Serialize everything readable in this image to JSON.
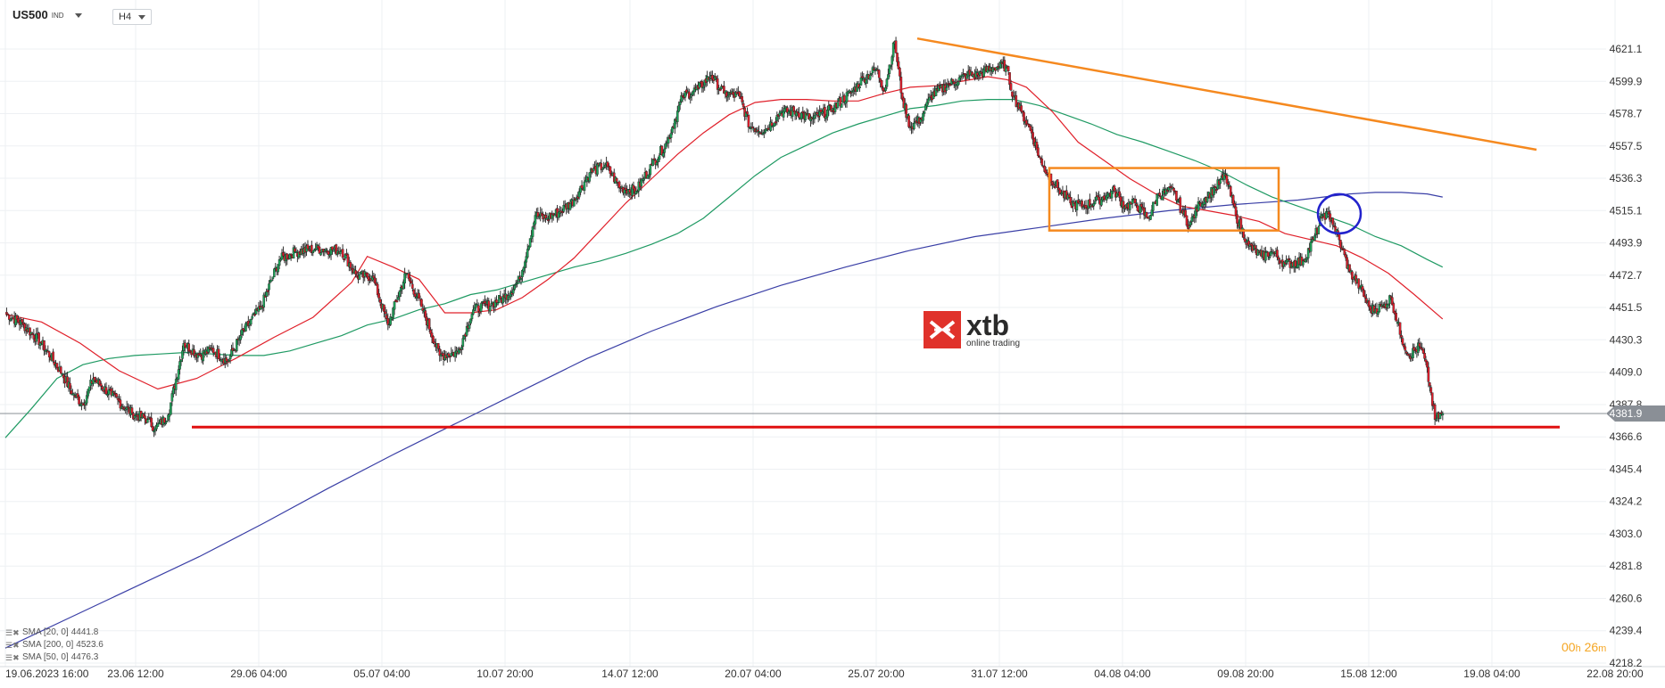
{
  "header": {
    "symbol": "US500",
    "symbol_type": "IND",
    "timeframe": "H4"
  },
  "price_axis": {
    "labels": [
      "4621.1",
      "4599.9",
      "4578.7",
      "4557.5",
      "4536.3",
      "4515.1",
      "4493.9",
      "4472.7",
      "4451.5",
      "4430.3",
      "4409.0",
      "4387.8",
      "4366.6",
      "4345.4",
      "4324.2",
      "4303.0",
      "4281.8",
      "4260.6",
      "4239.4",
      "4218.2"
    ],
    "current_price": "4381.9"
  },
  "time_axis": {
    "labels": [
      "19.06.2023  16:00",
      "23.06  12:00",
      "29.06  04:00",
      "05.07  04:00",
      "10.07  20:00",
      "14.07  12:00",
      "20.07  04:00",
      "25.07  20:00",
      "31.07  12:00",
      "04.08  04:00",
      "09.08  20:00",
      "15.08  12:00",
      "19.08  04:00",
      "22.08  20:00"
    ]
  },
  "indicators": [
    {
      "label": "SMA [20, 0]",
      "value": "4441.8",
      "color": "#e0202a"
    },
    {
      "label": "SMA [200, 0]",
      "value": "4523.6",
      "color": "#3a3fa6"
    },
    {
      "label": "SMA [50, 0]",
      "value": "4476.3",
      "color": "#1f9a63"
    }
  ],
  "logo": {
    "word": "xtb",
    "subtitle": "online trading"
  },
  "countdown": {
    "hours": "00",
    "hours_unit": "h",
    "minutes": "26",
    "minutes_unit": "m"
  },
  "colors": {
    "up": "#1fa55b",
    "down": "#e01e2c",
    "sma20": "#e0202a",
    "sma50": "#1f9a63",
    "sma200": "#3a3fa6",
    "trendline": "#f5891f",
    "box": "#f5891f",
    "support": "#e01010",
    "circle": "#2222cc",
    "price_line": "#8a8f96"
  },
  "chart_data": {
    "type": "candlestick",
    "symbol": "US500",
    "timeframe": "H4",
    "ylim": [
      4218.2,
      4631
    ],
    "x_range": [
      "19.06.2023 16:00",
      "22.08 20:00"
    ],
    "current_price": 4381.9,
    "support_level": 4373,
    "trendline": {
      "start": {
        "time": "27.07",
        "price": 4636
      },
      "end": {
        "time": "19.08",
        "price": 4554
      }
    },
    "consolidation_box": {
      "from": "01.08",
      "to": "10.08",
      "low": 4498,
      "high": 4542
    },
    "highlight_circle": {
      "time": "14.08",
      "price": 4510
    },
    "anchors": [
      [
        0,
        4448
      ],
      [
        14,
        4440
      ],
      [
        28,
        4428
      ],
      [
        44,
        4408
      ],
      [
        52,
        4395
      ],
      [
        60,
        4388
      ],
      [
        68,
        4405
      ],
      [
        82,
        4394
      ],
      [
        98,
        4382
      ],
      [
        110,
        4378
      ],
      [
        116,
        4372
      ],
      [
        126,
        4381
      ],
      [
        138,
        4428
      ],
      [
        150,
        4420
      ],
      [
        160,
        4424
      ],
      [
        172,
        4416
      ],
      [
        182,
        4433
      ],
      [
        198,
        4452
      ],
      [
        212,
        4483
      ],
      [
        224,
        4488
      ],
      [
        240,
        4490
      ],
      [
        260,
        4489
      ],
      [
        272,
        4472
      ],
      [
        284,
        4472
      ],
      [
        296,
        4440
      ],
      [
        310,
        4474
      ],
      [
        322,
        4452
      ],
      [
        336,
        4420
      ],
      [
        350,
        4422
      ],
      [
        362,
        4450
      ],
      [
        376,
        4454
      ],
      [
        386,
        4458
      ],
      [
        398,
        4470
      ],
      [
        410,
        4512
      ],
      [
        418,
        4510
      ],
      [
        428,
        4514
      ],
      [
        440,
        4522
      ],
      [
        452,
        4540
      ],
      [
        464,
        4545
      ],
      [
        476,
        4530
      ],
      [
        488,
        4528
      ],
      [
        500,
        4545
      ],
      [
        512,
        4560
      ],
      [
        524,
        4590
      ],
      [
        536,
        4595
      ],
      [
        546,
        4604
      ],
      [
        556,
        4592
      ],
      [
        568,
        4590
      ],
      [
        576,
        4570
      ],
      [
        588,
        4568
      ],
      [
        600,
        4580
      ],
      [
        612,
        4580
      ],
      [
        624,
        4575
      ],
      [
        640,
        4582
      ],
      [
        656,
        4594
      ],
      [
        664,
        4602
      ],
      [
        674,
        4608
      ],
      [
        680,
        4594
      ],
      [
        688,
        4626
      ],
      [
        694,
        4588
      ],
      [
        700,
        4570
      ],
      [
        708,
        4575
      ],
      [
        716,
        4590
      ],
      [
        730,
        4598
      ],
      [
        744,
        4604
      ],
      [
        752,
        4604
      ],
      [
        764,
        4609
      ],
      [
        774,
        4610
      ],
      [
        780,
        4590
      ],
      [
        786,
        4580
      ],
      [
        794,
        4566
      ],
      [
        802,
        4545
      ],
      [
        814,
        4530
      ],
      [
        824,
        4520
      ],
      [
        834,
        4518
      ],
      [
        846,
        4522
      ],
      [
        858,
        4528
      ],
      [
        866,
        4518
      ],
      [
        874,
        4520
      ],
      [
        884,
        4510
      ],
      [
        892,
        4526
      ],
      [
        904,
        4528
      ],
      [
        910,
        4515
      ],
      [
        916,
        4505
      ],
      [
        924,
        4520
      ],
      [
        936,
        4530
      ],
      [
        944,
        4538
      ],
      [
        952,
        4512
      ],
      [
        962,
        4492
      ],
      [
        972,
        4485
      ],
      [
        980,
        4488
      ],
      [
        990,
        4480
      ],
      [
        1004,
        4482
      ],
      [
        1012,
        4496
      ],
      [
        1020,
        4513
      ],
      [
        1026,
        4510
      ],
      [
        1034,
        4490
      ],
      [
        1040,
        4475
      ],
      [
        1048,
        4465
      ],
      [
        1056,
        4450
      ],
      [
        1066,
        4452
      ],
      [
        1072,
        4458
      ],
      [
        1080,
        4432
      ],
      [
        1086,
        4420
      ],
      [
        1094,
        4426
      ],
      [
        1098,
        4418
      ],
      [
        1102,
        4400
      ],
      [
        1106,
        4378
      ],
      [
        1112,
        4382
      ]
    ],
    "sma20": [
      [
        0,
        4447
      ],
      [
        28,
        4442
      ],
      [
        58,
        4428
      ],
      [
        88,
        4410
      ],
      [
        118,
        4398
      ],
      [
        148,
        4405
      ],
      [
        178,
        4418
      ],
      [
        208,
        4432
      ],
      [
        238,
        4445
      ],
      [
        268,
        4468
      ],
      [
        280,
        4485
      ],
      [
        300,
        4478
      ],
      [
        320,
        4470
      ],
      [
        340,
        4448
      ],
      [
        360,
        4448
      ],
      [
        380,
        4450
      ],
      [
        400,
        4458
      ],
      [
        420,
        4470
      ],
      [
        440,
        4484
      ],
      [
        460,
        4502
      ],
      [
        480,
        4520
      ],
      [
        500,
        4536
      ],
      [
        520,
        4552
      ],
      [
        540,
        4566
      ],
      [
        560,
        4578
      ],
      [
        580,
        4586
      ],
      [
        600,
        4588
      ],
      [
        620,
        4588
      ],
      [
        640,
        4587
      ],
      [
        660,
        4587
      ],
      [
        680,
        4592
      ],
      [
        700,
        4596
      ],
      [
        720,
        4597
      ],
      [
        740,
        4600
      ],
      [
        760,
        4603
      ],
      [
        775,
        4601
      ],
      [
        790,
        4596
      ],
      [
        810,
        4580
      ],
      [
        830,
        4560
      ],
      [
        850,
        4548
      ],
      [
        870,
        4536
      ],
      [
        890,
        4526
      ],
      [
        910,
        4518
      ],
      [
        930,
        4515
      ],
      [
        950,
        4512
      ],
      [
        970,
        4508
      ],
      [
        990,
        4500
      ],
      [
        1010,
        4496
      ],
      [
        1030,
        4492
      ],
      [
        1050,
        4484
      ],
      [
        1070,
        4474
      ],
      [
        1090,
        4460
      ],
      [
        1112,
        4444
      ]
    ],
    "sma50": [
      [
        0,
        4366
      ],
      [
        20,
        4385
      ],
      [
        40,
        4405
      ],
      [
        60,
        4414
      ],
      [
        80,
        4418
      ],
      [
        100,
        4420
      ],
      [
        120,
        4421
      ],
      [
        140,
        4422
      ],
      [
        160,
        4421
      ],
      [
        180,
        4420
      ],
      [
        200,
        4420
      ],
      [
        220,
        4423
      ],
      [
        240,
        4428
      ],
      [
        260,
        4433
      ],
      [
        280,
        4440
      ],
      [
        300,
        4444
      ],
      [
        320,
        4450
      ],
      [
        340,
        4454
      ],
      [
        360,
        4460
      ],
      [
        380,
        4463
      ],
      [
        400,
        4468
      ],
      [
        420,
        4473
      ],
      [
        440,
        4478
      ],
      [
        460,
        4482
      ],
      [
        480,
        4487
      ],
      [
        500,
        4493
      ],
      [
        520,
        4500
      ],
      [
        540,
        4510
      ],
      [
        560,
        4524
      ],
      [
        580,
        4538
      ],
      [
        600,
        4550
      ],
      [
        620,
        4558
      ],
      [
        640,
        4566
      ],
      [
        660,
        4572
      ],
      [
        680,
        4577
      ],
      [
        700,
        4582
      ],
      [
        720,
        4584
      ],
      [
        740,
        4587
      ],
      [
        760,
        4588
      ],
      [
        780,
        4588
      ],
      [
        800,
        4584
      ],
      [
        820,
        4578
      ],
      [
        840,
        4572
      ],
      [
        860,
        4565
      ],
      [
        880,
        4560
      ],
      [
        900,
        4554
      ],
      [
        920,
        4548
      ],
      [
        940,
        4541
      ],
      [
        960,
        4532
      ],
      [
        980,
        4524
      ],
      [
        1000,
        4518
      ],
      [
        1020,
        4512
      ],
      [
        1040,
        4506
      ],
      [
        1060,
        4498
      ],
      [
        1080,
        4492
      ],
      [
        1100,
        4483
      ],
      [
        1112,
        4478
      ]
    ],
    "sma200": [
      [
        0,
        4228
      ],
      [
        50,
        4248
      ],
      [
        100,
        4268
      ],
      [
        150,
        4288
      ],
      [
        200,
        4310
      ],
      [
        250,
        4333
      ],
      [
        300,
        4355
      ],
      [
        350,
        4376
      ],
      [
        400,
        4397
      ],
      [
        450,
        4418
      ],
      [
        500,
        4436
      ],
      [
        550,
        4452
      ],
      [
        600,
        4466
      ],
      [
        650,
        4478
      ],
      [
        700,
        4489
      ],
      [
        750,
        4498
      ],
      [
        800,
        4504
      ],
      [
        850,
        4510
      ],
      [
        900,
        4515
      ],
      [
        950,
        4519
      ],
      [
        1000,
        4522
      ],
      [
        1040,
        4526
      ],
      [
        1060,
        4527
      ],
      [
        1080,
        4527
      ],
      [
        1100,
        4526
      ],
      [
        1112,
        4524
      ]
    ]
  }
}
